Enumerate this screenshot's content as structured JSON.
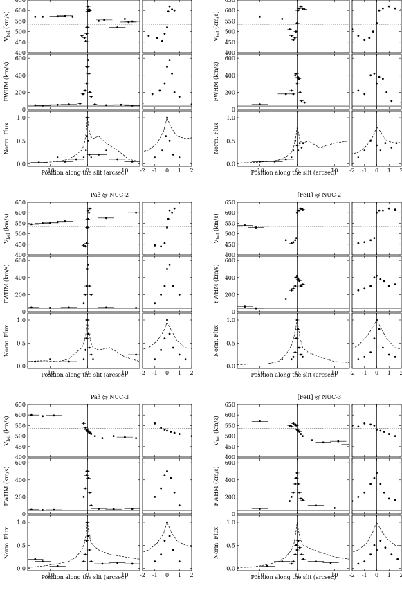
{
  "figure": {
    "panels": [
      {
        "title": "",
        "xlabel": "Position along the slit (arcsec)"
      },
      {
        "title": "",
        "xlabel": "Position along the slit (arcsec)"
      },
      {
        "title": "Paβ @ NUC-2",
        "xlabel": "Position along the slit (arcsec)"
      },
      {
        "title": "[FeII] @ NUC-2",
        "xlabel": "Position along the slit (arcsec)"
      },
      {
        "title": "Paβ @ NUC-3",
        "xlabel": "Position along the slit (arcsec)"
      },
      {
        "title": "[FeII] @ NUC-3",
        "xlabel": "Position along the slit (arcsec)"
      }
    ],
    "ylabels": {
      "vel": "V",
      "vel_sub": "hel",
      "vel_unit": " (km/s)",
      "fwhm": "FWHM (km/s)",
      "flux": "Norm. Flux"
    }
  },
  "chart_data": [
    {
      "type": "scatter",
      "title": "",
      "xlabel": "Position along the slit (arcsec)",
      "wide_xlim": [
        -16,
        14
      ],
      "zoom_xlim": [
        -2,
        2
      ],
      "wide_xticks": [
        -10,
        0,
        10
      ],
      "zoom_xticks": [
        -2,
        -1,
        0,
        1,
        2
      ],
      "vel": {
        "ylim": [
          400,
          650
        ],
        "yticks": [
          400,
          450,
          500,
          550,
          600,
          650
        ],
        "ref": 535,
        "x": [
          -14,
          -12,
          -8,
          -6,
          -4,
          -1.5,
          -0.8,
          -0.4,
          -0.2,
          0,
          0.1,
          0.2,
          0.4,
          0.6,
          3,
          4.5,
          8,
          10,
          11,
          12
        ],
        "y": [
          570,
          570,
          572,
          575,
          570,
          480,
          470,
          455,
          490,
          520,
          595,
          620,
          605,
          600,
          550,
          555,
          520,
          560,
          545,
          548
        ]
      },
      "fwhm": {
        "ylim": [
          0,
          650
        ],
        "yticks": [
          0,
          200,
          400,
          600
        ],
        "ref": 40,
        "x": [
          -14,
          -12,
          -8,
          -5,
          -2,
          -1.2,
          -0.6,
          -0.2,
          0,
          0.2,
          0.4,
          0.6,
          1,
          2,
          5,
          9,
          12
        ],
        "y": [
          50,
          45,
          55,
          60,
          70,
          180,
          220,
          300,
          500,
          580,
          420,
          200,
          150,
          60,
          50,
          55,
          45
        ]
      },
      "flux": {
        "ylim": [
          -0.05,
          1.15
        ],
        "yticks": [
          0,
          0.5,
          1.0
        ],
        "x": [
          -13,
          -8,
          -6,
          -3,
          -1,
          -0.4,
          -0.1,
          0,
          0.2,
          0.5,
          1,
          3,
          5,
          8,
          12
        ],
        "y": [
          0.03,
          0.15,
          0.05,
          0.1,
          0.15,
          0.3,
          0.6,
          1.0,
          0.5,
          0.2,
          0.15,
          0.2,
          0.3,
          0.1,
          0.05
        ],
        "profile_x": [
          -16,
          -12,
          -8,
          -5,
          -3,
          -1.5,
          -0.8,
          -0.3,
          0,
          0.3,
          0.8,
          1.5,
          3,
          5,
          8,
          11,
          14
        ],
        "profile_y": [
          0.02,
          0.03,
          0.05,
          0.1,
          0.2,
          0.3,
          0.45,
          0.7,
          1.0,
          0.8,
          0.6,
          0.55,
          0.6,
          0.45,
          0.3,
          0.1,
          0.05
        ]
      }
    },
    {
      "type": "scatter",
      "title": "",
      "xlabel": "Position along the slit (arcsec)",
      "wide_xlim": [
        -16,
        14
      ],
      "zoom_xlim": [
        -2,
        2
      ],
      "wide_xticks": [
        -10,
        0,
        10
      ],
      "zoom_xticks": [
        -2,
        -1,
        0,
        1,
        2
      ],
      "vel": {
        "ylim": [
          400,
          650
        ],
        "yticks": [
          400,
          450,
          500,
          550,
          600,
          650
        ],
        "ref": 535,
        "x": [
          -10,
          -4,
          -2,
          -1.5,
          -1,
          -0.6,
          -0.3,
          0,
          0.2,
          0.5,
          1,
          1.5,
          2
        ],
        "y": [
          570,
          560,
          510,
          480,
          460,
          470,
          500,
          540,
          600,
          610,
          620,
          610,
          605
        ]
      },
      "fwhm": {
        "ylim": [
          0,
          650
        ],
        "yticks": [
          0,
          200,
          400,
          600
        ],
        "ref": 40,
        "x": [
          -10,
          -3,
          -1.5,
          -1,
          -0.5,
          -0.2,
          0,
          0.2,
          0.5,
          0.8,
          1.2,
          2
        ],
        "y": [
          60,
          180,
          220,
          180,
          400,
          420,
          300,
          380,
          360,
          200,
          100,
          80
        ]
      },
      "flux": {
        "ylim": [
          -0.05,
          1.15
        ],
        "yticks": [
          0,
          0.5,
          1.0
        ],
        "x": [
          -10,
          -6,
          -3,
          -1.5,
          -1,
          -0.5,
          0,
          0.3,
          0.7,
          1.2,
          1.6
        ],
        "y": [
          0.05,
          0.05,
          0.1,
          0.15,
          0.3,
          0.5,
          0.4,
          0.3,
          0.45,
          0.35,
          0.45
        ],
        "profile_x": [
          -16,
          -12,
          -8,
          -5,
          -3,
          -1.5,
          -0.8,
          -0.3,
          0,
          0.3,
          0.8,
          1.5,
          3,
          6,
          10,
          14
        ],
        "profile_y": [
          0.02,
          0.03,
          0.05,
          0.08,
          0.15,
          0.25,
          0.4,
          0.6,
          0.8,
          0.7,
          0.5,
          0.45,
          0.5,
          0.35,
          0.45,
          0.5
        ]
      }
    },
    {
      "type": "scatter",
      "title": "Paβ @ NUC-2",
      "xlabel": "Position along the slit (arcsec)",
      "wide_xlim": [
        -16,
        14
      ],
      "zoom_xlim": [
        -2,
        2
      ],
      "wide_xticks": [
        -10,
        0,
        10
      ],
      "zoom_xticks": [
        -2,
        -1,
        0,
        1,
        2
      ],
      "vel": {
        "ylim": [
          400,
          650
        ],
        "yticks": [
          400,
          450,
          500,
          550,
          600,
          650
        ],
        "ref": 535,
        "x": [
          -15,
          -12,
          -10,
          -8,
          -6,
          -1,
          -0.5,
          -0.2,
          0,
          0.1,
          0.2,
          0.4,
          0.6,
          5,
          13
        ],
        "y": [
          545,
          550,
          552,
          555,
          560,
          445,
          440,
          455,
          530,
          570,
          610,
          600,
          620,
          575,
          600
        ]
      },
      "fwhm": {
        "ylim": [
          0,
          650
        ],
        "yticks": [
          0,
          200,
          400,
          600
        ],
        "ref": 40,
        "x": [
          -15,
          -10,
          -5,
          -1,
          -0.5,
          -0.2,
          0,
          0.2,
          0.5,
          1,
          5,
          13
        ],
        "y": [
          50,
          45,
          50,
          100,
          200,
          300,
          500,
          550,
          300,
          200,
          50,
          45
        ]
      },
      "flux": {
        "ylim": [
          -0.05,
          1.15
        ],
        "yticks": [
          0,
          0.5,
          1.0
        ],
        "x": [
          -14,
          -10,
          -5,
          -1,
          -0.5,
          -0.2,
          0,
          0.2,
          0.5,
          1,
          1.5,
          13
        ],
        "y": [
          0.1,
          0.15,
          0.1,
          0.15,
          0.35,
          0.6,
          1.0,
          0.7,
          0.4,
          0.25,
          0.15,
          0.25
        ],
        "profile_x": [
          -16,
          -12,
          -8,
          -5,
          -3,
          -1.5,
          -0.8,
          -0.3,
          0,
          0.3,
          0.8,
          1.5,
          3,
          6,
          10,
          14
        ],
        "profile_y": [
          0.1,
          0.12,
          0.1,
          0.15,
          0.3,
          0.4,
          0.55,
          0.75,
          0.95,
          0.8,
          0.55,
          0.4,
          0.35,
          0.4,
          0.2,
          0.1
        ]
      }
    },
    {
      "type": "scatter",
      "title": "[FeII] @ NUC-2",
      "xlabel": "Position along the slit (arcsec)",
      "wide_xlim": [
        -16,
        14
      ],
      "zoom_xlim": [
        -2,
        2
      ],
      "wide_xticks": [
        -10,
        0,
        10
      ],
      "zoom_xticks": [
        -2,
        -1,
        0,
        1,
        2
      ],
      "vel": {
        "ylim": [
          400,
          650
        ],
        "yticks": [
          400,
          450,
          500,
          550,
          600,
          650
        ],
        "ref": 535,
        "x": [
          -14,
          -11,
          -3,
          -1.5,
          -1,
          -0.5,
          -0.2,
          0,
          0.2,
          0.5,
          1,
          1.5
        ],
        "y": [
          540,
          530,
          470,
          455,
          460,
          470,
          480,
          600,
          610,
          610,
          620,
          615
        ]
      },
      "fwhm": {
        "ylim": [
          0,
          650
        ],
        "yticks": [
          0,
          200,
          400,
          600
        ],
        "ref": 40,
        "x": [
          -14,
          -11,
          -3,
          -1.5,
          -1,
          -0.5,
          -0.2,
          0,
          0.3,
          0.6,
          1,
          1.5
        ],
        "y": [
          60,
          40,
          150,
          250,
          270,
          300,
          400,
          420,
          380,
          360,
          300,
          320
        ]
      },
      "flux": {
        "ylim": [
          -0.05,
          1.15
        ],
        "yticks": [
          0,
          0.5,
          1.0
        ],
        "x": [
          -4,
          -1.5,
          -1,
          -0.5,
          -0.2,
          0,
          0.2,
          0.5,
          1,
          1.5
        ],
        "y": [
          0.15,
          0.15,
          0.2,
          0.3,
          0.6,
          1.0,
          0.8,
          0.4,
          0.25,
          0.2
        ],
        "profile_x": [
          -16,
          -12,
          -8,
          -5,
          -3,
          -1.5,
          -0.8,
          -0.3,
          0,
          0.3,
          0.8,
          1.5,
          3,
          6,
          10,
          14
        ],
        "profile_y": [
          0.03,
          0.05,
          0.05,
          0.1,
          0.25,
          0.45,
          0.65,
          0.85,
          1.0,
          0.85,
          0.6,
          0.4,
          0.3,
          0.2,
          0.1,
          0.08
        ]
      }
    },
    {
      "type": "scatter",
      "title": "Paβ @ NUC-3",
      "xlabel": "Position along the slit (arcsec)",
      "wide_xlim": [
        -16,
        14
      ],
      "zoom_xlim": [
        -2,
        2
      ],
      "wide_xticks": [
        -10,
        0,
        10
      ],
      "zoom_xticks": [
        -2,
        -1,
        0,
        1,
        2
      ],
      "vel": {
        "ylim": [
          400,
          650
        ],
        "yticks": [
          400,
          450,
          500,
          550,
          600,
          650
        ],
        "ref": 535,
        "x": [
          -15,
          -12,
          -9,
          -1,
          -0.5,
          -0.2,
          0,
          0.3,
          0.6,
          1,
          2,
          4,
          7,
          10,
          13
        ],
        "y": [
          600,
          595,
          598,
          560,
          540,
          530,
          525,
          520,
          515,
          510,
          500,
          490,
          500,
          495,
          490
        ]
      },
      "fwhm": {
        "ylim": [
          0,
          650
        ],
        "yticks": [
          0,
          200,
          400,
          600
        ],
        "ref": 40,
        "x": [
          -15,
          -12,
          -9,
          -1,
          -0.5,
          -0.2,
          0,
          0.3,
          0.6,
          1,
          3,
          7,
          12
        ],
        "y": [
          50,
          45,
          48,
          200,
          300,
          450,
          500,
          420,
          250,
          100,
          60,
          55,
          60
        ]
      },
      "flux": {
        "ylim": [
          -0.05,
          1.15
        ],
        "yticks": [
          0,
          0.5,
          1.0
        ],
        "x": [
          -14,
          -12,
          -8,
          -1,
          -0.5,
          -0.2,
          0,
          0.2,
          0.5,
          1,
          4,
          8,
          12
        ],
        "y": [
          0.2,
          0.15,
          0.05,
          0.15,
          0.3,
          0.6,
          1.0,
          0.7,
          0.4,
          0.15,
          0.1,
          0.12,
          0.1
        ],
        "profile_x": [
          -16,
          -12,
          -8,
          -5,
          -3,
          -1.5,
          -0.8,
          -0.3,
          0,
          0.3,
          0.8,
          1.5,
          3,
          6,
          10,
          14
        ],
        "profile_y": [
          0.02,
          0.05,
          0.1,
          0.15,
          0.25,
          0.4,
          0.55,
          0.75,
          1.0,
          0.8,
          0.6,
          0.5,
          0.4,
          0.3,
          0.25,
          0.2
        ]
      }
    },
    {
      "type": "scatter",
      "title": "[FeII] @ NUC-3",
      "xlabel": "Position along the slit (arcsec)",
      "wide_xlim": [
        -16,
        14
      ],
      "zoom_xlim": [
        -2,
        2
      ],
      "wide_xticks": [
        -10,
        0,
        10
      ],
      "zoom_xticks": [
        -2,
        -1,
        0,
        1,
        2
      ],
      "vel": {
        "ylim": [
          400,
          650
        ],
        "yticks": [
          400,
          450,
          500,
          550,
          600,
          650
        ],
        "ref": 535,
        "x": [
          -10,
          -2,
          -1.5,
          -1,
          -0.5,
          -0.2,
          0,
          0.3,
          0.6,
          1,
          1.5,
          4,
          7,
          11,
          14
        ],
        "y": [
          570,
          550,
          545,
          560,
          555,
          550,
          530,
          525,
          520,
          510,
          500,
          480,
          470,
          475,
          460
        ]
      },
      "fwhm": {
        "ylim": [
          0,
          650
        ],
        "yticks": [
          0,
          200,
          400,
          600
        ],
        "ref": 40,
        "x": [
          -10,
          -2,
          -1.5,
          -1,
          -0.5,
          -0.2,
          0,
          0.3,
          0.6,
          1,
          1.5,
          5,
          10
        ],
        "y": [
          60,
          150,
          200,
          250,
          350,
          420,
          480,
          350,
          250,
          180,
          160,
          100,
          70
        ]
      },
      "flux": {
        "ylim": [
          -0.05,
          1.15
        ],
        "yticks": [
          0,
          0.5,
          1.0
        ],
        "x": [
          -8,
          -4,
          -1.5,
          -1,
          -0.5,
          -0.2,
          0,
          0.3,
          0.7,
          1.2,
          1.7,
          5,
          9
        ],
        "y": [
          0.05,
          0.15,
          0.1,
          0.15,
          0.3,
          0.5,
          0.4,
          0.6,
          0.45,
          0.3,
          0.2,
          0.15,
          0.12
        ],
        "profile_x": [
          -16,
          -12,
          -8,
          -5,
          -3,
          -1.5,
          -0.8,
          -0.3,
          0,
          0.3,
          0.8,
          1.5,
          3,
          6,
          10,
          14
        ],
        "profile_y": [
          0.02,
          0.03,
          0.08,
          0.15,
          0.25,
          0.4,
          0.55,
          0.8,
          1.0,
          0.85,
          0.65,
          0.5,
          0.45,
          0.35,
          0.25,
          0.2
        ]
      }
    }
  ]
}
